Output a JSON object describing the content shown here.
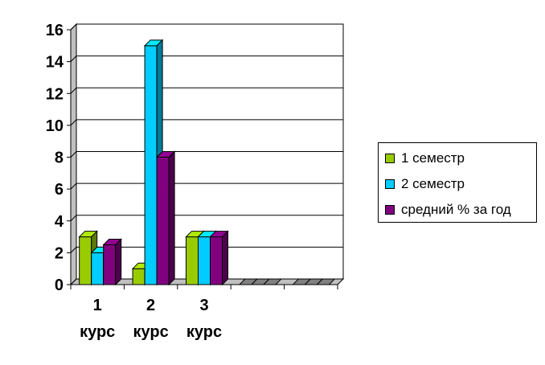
{
  "chart_data": {
    "type": "bar",
    "categories": [
      [
        "1",
        "курс"
      ],
      [
        "2",
        "курс"
      ],
      [
        "3",
        "курс"
      ],
      [
        "",
        ""
      ],
      [
        "",
        ""
      ]
    ],
    "series": [
      {
        "name": "1 семестр",
        "values": [
          3,
          1,
          3,
          0,
          0
        ],
        "color": "#99cc00"
      },
      {
        "name": "2 семестр",
        "values": [
          2,
          15,
          3,
          0,
          0
        ],
        "color": "#00ccff"
      },
      {
        "name": "средний % за год",
        "values": [
          2.5,
          8,
          3,
          0,
          0
        ],
        "color": "#800080"
      }
    ],
    "ylim": [
      0,
      16
    ],
    "yticks": [
      0,
      2,
      4,
      6,
      8,
      10,
      12,
      14,
      16
    ],
    "grid": true,
    "legend_position": "right",
    "three_d": true
  }
}
